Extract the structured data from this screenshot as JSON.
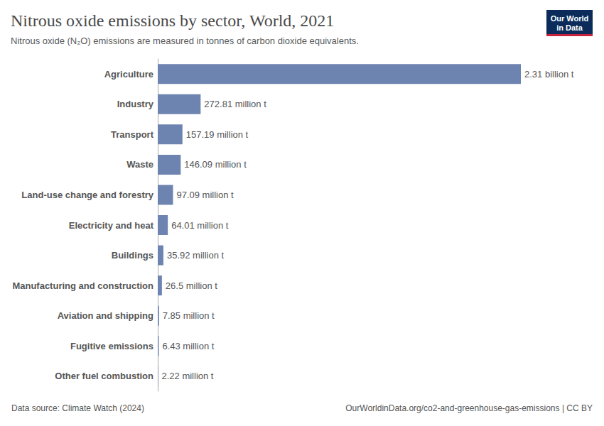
{
  "chart_data": {
    "type": "bar",
    "orientation": "horizontal",
    "title": "Nitrous oxide emissions by sector, World, 2021",
    "subtitle": "Nitrous oxide (N₂O) emissions are measured in tonnes of carbon dioxide equivalents.",
    "categories": [
      "Agriculture",
      "Industry",
      "Transport",
      "Waste",
      "Land-use change and forestry",
      "Electricity and heat",
      "Buildings",
      "Manufacturing and construction",
      "Aviation and shipping",
      "Fugitive emissions",
      "Other fuel combustion"
    ],
    "values": [
      2310000000,
      272810000,
      157190000,
      146090000,
      97090000,
      64010000,
      35920000,
      26500000,
      7850000,
      6430000,
      2220000
    ],
    "value_labels": [
      "2.31 billion t",
      "272.81 million t",
      "157.19 million t",
      "146.09 million t",
      "97.09 million t",
      "64.01 million t",
      "35.92 million t",
      "26.5 million t",
      "7.85 million t",
      "6.43 million t",
      "2.22 million t"
    ],
    "color": "#6d83b0",
    "xlim": [
      0,
      2310000000
    ],
    "data_labels": true,
    "tick_labels": "y",
    "grid": false,
    "source": "Data source: Climate Watch (2024)",
    "url": "OurWorldinData.org/co2-and-greenhouse-gas-emissions | CC BY",
    "logo": [
      "Our World",
      "in Data"
    ]
  }
}
